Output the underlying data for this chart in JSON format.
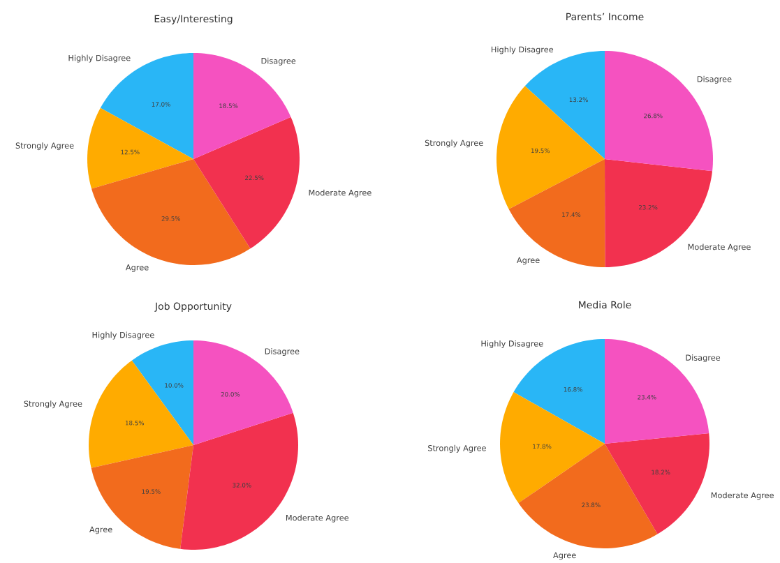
{
  "chart_data": [
    {
      "type": "pie",
      "title": "Easy/Interesting",
      "categories": [
        "Highly Disagree",
        "Strongly Agree",
        "Agree",
        "Moderate Agree",
        "Disagree"
      ],
      "values": [
        17.0,
        12.5,
        29.5,
        22.5,
        18.5
      ],
      "colors": [
        "#29b6f6",
        "#ffab00",
        "#f26b1d",
        "#f2314f",
        "#f552c0"
      ],
      "value_labels": [
        "17.0%",
        "12.5%",
        "29.5%",
        "22.5%",
        "18.5%"
      ]
    },
    {
      "type": "pie",
      "title": "Parents’ Income",
      "categories": [
        "Highly Disagree",
        "Strongly Agree",
        "Agree",
        "Moderate Agree",
        "Disagree"
      ],
      "values": [
        13.2,
        19.5,
        17.4,
        23.2,
        26.8
      ],
      "colors": [
        "#29b6f6",
        "#ffab00",
        "#f26b1d",
        "#f2314f",
        "#f552c0"
      ],
      "value_labels": [
        "13.2%",
        "19.5%",
        "17.4%",
        "23.2%",
        "26.8%"
      ]
    },
    {
      "type": "pie",
      "title": "Job Opportunity",
      "categories": [
        "Highly Disagree",
        "Strongly Agree",
        "Agree",
        "Moderate Agree",
        "Disagree"
      ],
      "values": [
        10.0,
        18.5,
        19.5,
        32.0,
        20.0
      ],
      "colors": [
        "#29b6f6",
        "#ffab00",
        "#f26b1d",
        "#f2314f",
        "#f552c0"
      ],
      "value_labels": [
        "10.0%",
        "18.5%",
        "19.5%",
        "32.0%",
        "20.0%"
      ]
    },
    {
      "type": "pie",
      "title": "Media Role",
      "categories": [
        "Highly Disagree",
        "Strongly Agree",
        "Agree",
        "Moderate Agree",
        "Disagree"
      ],
      "values": [
        16.8,
        17.8,
        23.8,
        18.2,
        23.4
      ],
      "colors": [
        "#29b6f6",
        "#ffab00",
        "#f26b1d",
        "#f2314f",
        "#f552c0"
      ],
      "value_labels": [
        "16.8%",
        "17.8%",
        "23.8%",
        "18.2%",
        "23.4%"
      ]
    }
  ]
}
